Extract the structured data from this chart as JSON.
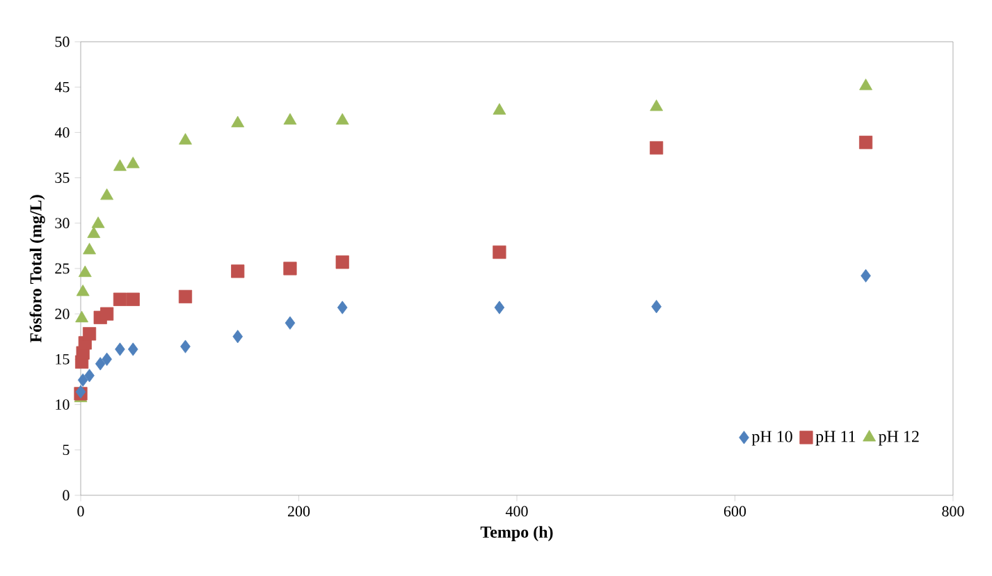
{
  "chart_data": {
    "type": "scatter",
    "xlabel": "Tempo (h)",
    "ylabel": "Fósforo Total (mg/L)",
    "xlim": [
      0,
      800
    ],
    "xticks": [
      0,
      200,
      400,
      600,
      800
    ],
    "ylim": [
      0,
      50
    ],
    "yticks": [
      0,
      5,
      10,
      15,
      20,
      25,
      30,
      35,
      40,
      45,
      50
    ],
    "grid": false,
    "legend": "bottom right",
    "series": [
      {
        "name": "pH 10",
        "color": "#4f81bd",
        "marker": "diamond",
        "x": [
          0,
          2,
          8,
          18,
          24,
          36,
          48,
          96,
          144,
          192,
          240,
          384,
          528,
          720
        ],
        "values": [
          11.4,
          12.7,
          13.2,
          14.5,
          15,
          16.1,
          16.1,
          16.4,
          17.5,
          19,
          20.7,
          20.7,
          20.8,
          24.2
        ]
      },
      {
        "name": "pH 11",
        "color": "#c0504d",
        "marker": "square",
        "x": [
          0,
          1,
          2,
          4,
          8,
          18,
          24,
          36,
          48,
          96,
          144,
          192,
          240,
          384,
          528,
          720
        ],
        "values": [
          11.2,
          14.7,
          15.7,
          16.8,
          17.8,
          19.6,
          20,
          21.6,
          21.6,
          21.9,
          24.7,
          25,
          25.7,
          26.8,
          38.3,
          38.9
        ]
      },
      {
        "name": "pH 12",
        "color": "#9bbb59",
        "marker": "triangle",
        "x": [
          0,
          1,
          2,
          4,
          8,
          12,
          16,
          24,
          36,
          48,
          96,
          144,
          192,
          240,
          384,
          528,
          720
        ],
        "values": [
          10.7,
          19.5,
          22.4,
          24.5,
          27,
          28.8,
          29.9,
          33,
          36.2,
          36.5,
          39.1,
          41,
          41.3,
          41.3,
          42.4,
          42.8,
          45.1
        ]
      }
    ]
  }
}
